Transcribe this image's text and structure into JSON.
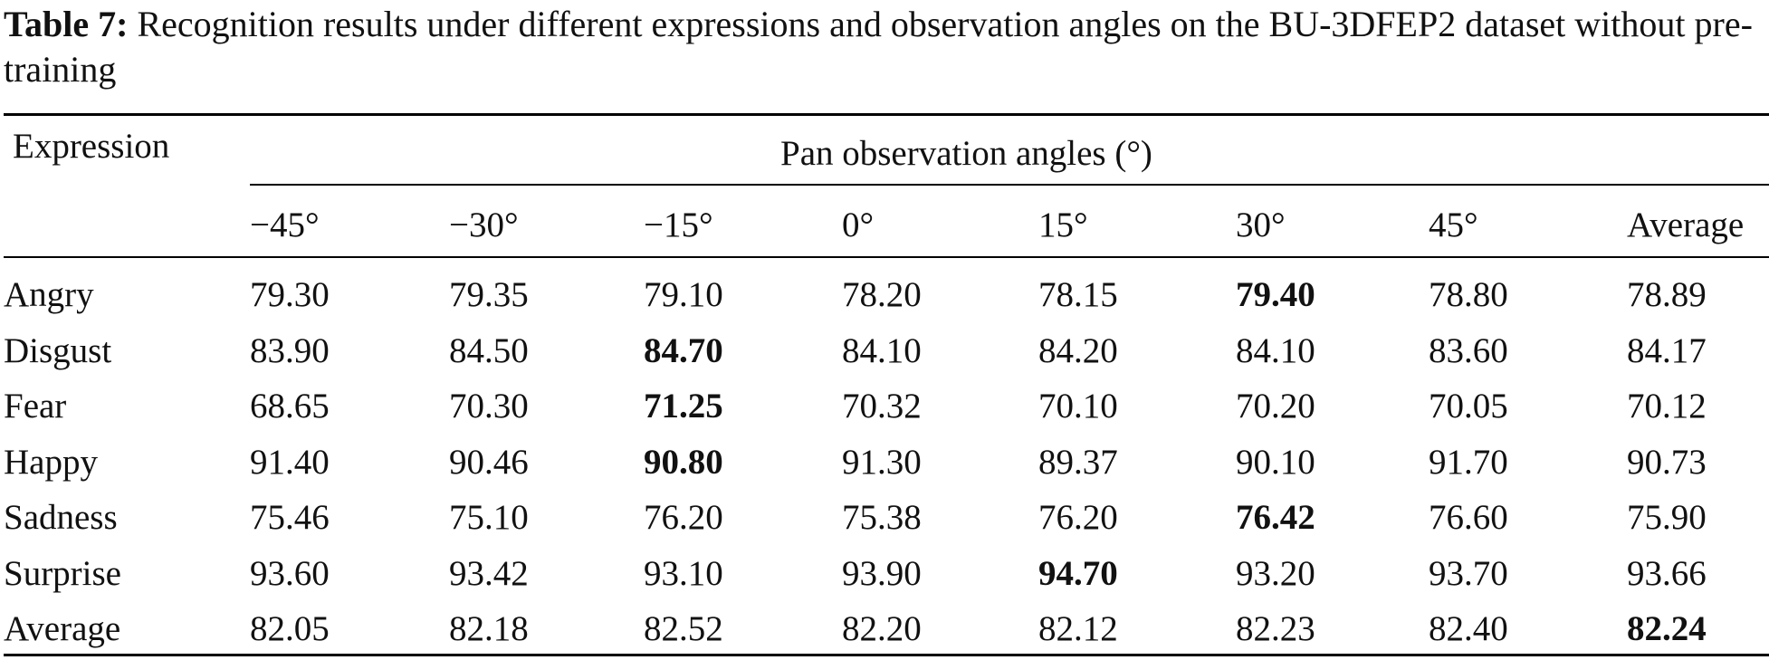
{
  "caption": {
    "label": "Table 7:",
    "text": "Recognition results under different expressions and observation angles on the BU-3DFEP2 dataset without pre-training"
  },
  "table": {
    "row_header": "Expression",
    "group_header": "Pan observation angles (°)",
    "columns": [
      "−45°",
      "−30°",
      "−15°",
      "0°",
      "15°",
      "30°",
      "45°",
      "Average"
    ],
    "rows": [
      {
        "label": "Angry",
        "values": [
          "79.30",
          "79.35",
          "79.10",
          "78.20",
          "78.15",
          "79.40",
          "78.80",
          "78.89"
        ],
        "bold": [
          5
        ]
      },
      {
        "label": "Disgust",
        "values": [
          "83.90",
          "84.50",
          "84.70",
          "84.10",
          "84.20",
          "84.10",
          "83.60",
          "84.17"
        ],
        "bold": [
          2
        ]
      },
      {
        "label": "Fear",
        "values": [
          "68.65",
          "70.30",
          "71.25",
          "70.32",
          "70.10",
          "70.20",
          "70.05",
          "70.12"
        ],
        "bold": [
          2
        ]
      },
      {
        "label": "Happy",
        "values": [
          "91.40",
          "90.46",
          "90.80",
          "91.30",
          "89.37",
          "90.10",
          "91.70",
          "90.73"
        ],
        "bold": [
          2
        ]
      },
      {
        "label": "Sadness",
        "values": [
          "75.46",
          "75.10",
          "76.20",
          "75.38",
          "76.20",
          "76.42",
          "76.60",
          "75.90"
        ],
        "bold": [
          5
        ]
      },
      {
        "label": "Surprise",
        "values": [
          "93.60",
          "93.42",
          "93.10",
          "93.90",
          "94.70",
          "93.20",
          "93.70",
          "93.66"
        ],
        "bold": [
          4
        ]
      },
      {
        "label": "Average",
        "values": [
          "82.05",
          "82.18",
          "82.52",
          "82.20",
          "82.12",
          "82.23",
          "82.40",
          "82.24"
        ],
        "bold": [
          7
        ]
      }
    ]
  }
}
